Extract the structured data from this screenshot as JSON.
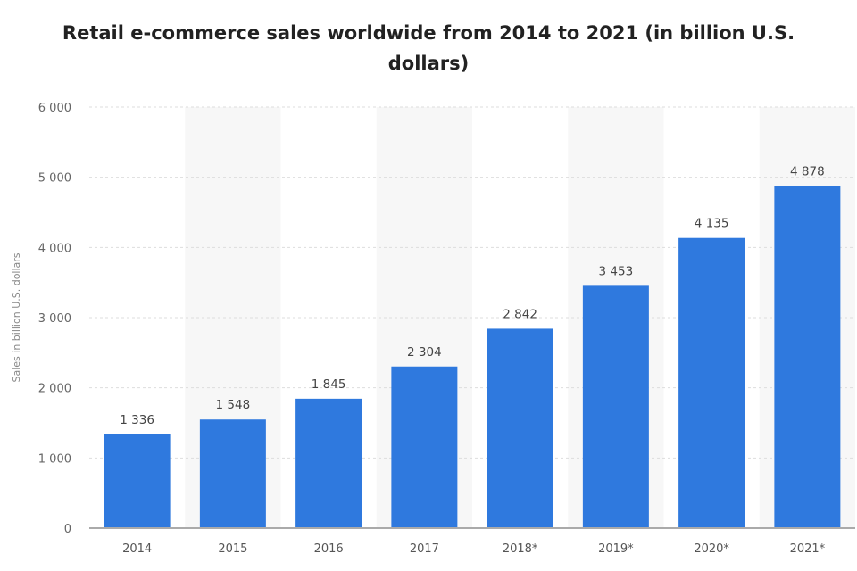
{
  "chart_data": {
    "type": "bar",
    "title_lines": [
      "Retail e-commerce sales worldwide from 2014 to 2021 (in billion U.S.",
      "dollars)"
    ],
    "xlabel": "",
    "ylabel": "Sales in billion U.S. dollars",
    "categories": [
      "2014",
      "2015",
      "2016",
      "2017",
      "2018*",
      "2019*",
      "2020*",
      "2021*"
    ],
    "values": [
      1336,
      1548,
      1845,
      2304,
      2842,
      3453,
      4135,
      4878
    ],
    "value_labels": [
      "1 336",
      "1 548",
      "1 845",
      "2 304",
      "2 842",
      "3 453",
      "4 135",
      "4 878"
    ],
    "yticks": [
      0,
      1000,
      2000,
      3000,
      4000,
      5000,
      6000
    ],
    "ytick_labels": [
      "0",
      "1 000",
      "2 000",
      "3 000",
      "4 000",
      "5 000",
      "6 000"
    ],
    "ylim": [
      0,
      6000
    ],
    "grid": true,
    "bar_color": "#2f79de"
  }
}
